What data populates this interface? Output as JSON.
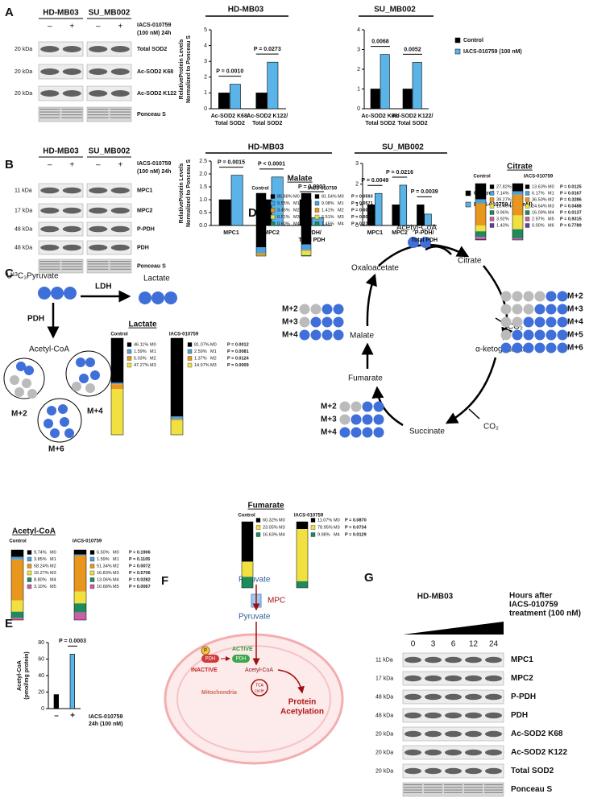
{
  "panel_labels": [
    "A",
    "B",
    "C",
    "D",
    "E",
    "F",
    "G"
  ],
  "blots": {
    "A": {
      "groups": [
        "HD-MB03",
        "SU_MB002"
      ],
      "lanes": [
        "–",
        "+"
      ],
      "treatment": [
        "IACS-010759",
        "(100 nM) 24h"
      ],
      "rows": [
        {
          "label": "Total SOD2",
          "kda": "20 kDa"
        },
        {
          "label": "Ac-SOD2 K68",
          "kda": "20 kDa"
        },
        {
          "label": "Ac-SOD2 K122",
          "kda": "20 kDa"
        },
        {
          "label": "Ponceau S"
        }
      ]
    },
    "B": {
      "groups": [
        "HD-MB03",
        "SU_MB002"
      ],
      "lanes": [
        "–",
        "+"
      ],
      "treatment": [
        "IACS-010759",
        "(100 nM) 24h"
      ],
      "rows": [
        {
          "label": "MPC1",
          "kda": "11 kDa"
        },
        {
          "label": "MPC2",
          "kda": "17 kDa"
        },
        {
          "label": "P-PDH",
          "kda": "48 kDa"
        },
        {
          "label": "PDH",
          "kda": "48 kDa"
        },
        {
          "label": "Ponceau S"
        }
      ]
    },
    "G": {
      "title": "HD-MB03",
      "hours": [
        "0",
        "3",
        "6",
        "12",
        "24"
      ],
      "treatment": [
        "Hours after",
        "IACS-010759",
        "treatment (100 nM)"
      ],
      "rows": [
        {
          "label": "MPC1",
          "kda": "11 kDa"
        },
        {
          "label": "MPC2",
          "kda": "17 kDa"
        },
        {
          "label": "P-PDH",
          "kda": "48 kDa"
        },
        {
          "label": "PDH",
          "kda": "48 kDa"
        },
        {
          "label": "Ac-SOD2 K68",
          "kda": "20 kDa"
        },
        {
          "label": "Ac-SOD2 K122",
          "kda": "20 kDa"
        },
        {
          "label": "Total SOD2",
          "kda": "20 kDa"
        },
        {
          "label": "Ponceau S"
        }
      ]
    }
  },
  "chart_data": [
    {
      "type": "bar",
      "title": "HD-MB03",
      "ylabel": [
        "RelativeProtein Levels",
        "Normalized to Ponceau S"
      ],
      "categories": [
        [
          "Ac-SOD2 K68/",
          "Total SOD2"
        ],
        [
          "Ac-SOD2 K122/",
          "Total SOD2"
        ]
      ],
      "series": [
        {
          "color": "#000000",
          "values": [
            1,
            1
          ]
        },
        {
          "color": "#5ab4e8",
          "values": [
            1.55,
            2.95
          ]
        }
      ],
      "annotations": [
        "P = 0.0010",
        "P = 0.0273"
      ],
      "ylim": [
        0,
        5
      ],
      "yticks": [
        0,
        1,
        2,
        3,
        4,
        5
      ]
    },
    {
      "type": "bar",
      "title": "SU_MB002",
      "categories": [
        [
          "Ac-SOD2 K68/",
          "Total SOD2"
        ],
        [
          "Ac-SOD2 K122/",
          "Total SOD2"
        ]
      ],
      "series": [
        {
          "name": "Control",
          "color": "#000000",
          "values": [
            1,
            1
          ]
        },
        {
          "name": "IACS-010759 (100 nM)",
          "color": "#5ab4e8",
          "values": [
            2.75,
            2.35
          ]
        }
      ],
      "annotations": [
        "0.0068",
        "0.0052"
      ],
      "ylim": [
        0,
        4
      ],
      "yticks": [
        0,
        1,
        2,
        3,
        4
      ],
      "legend": "right"
    },
    {
      "type": "bar",
      "title": "HD-MB03",
      "ylabel": [
        "RelativeProtein Levels",
        "Normalized to Ponceau S"
      ],
      "categories": [
        [
          "MPC1"
        ],
        [
          "MPC2"
        ],
        [
          "P-PDH/",
          "Total PDH"
        ]
      ],
      "series": [
        {
          "color": "#000000",
          "values": [
            1,
            1,
            1
          ]
        },
        {
          "color": "#5ab4e8",
          "values": [
            1.95,
            1.88,
            0.3
          ]
        }
      ],
      "annotations": [
        "P = 0.0015",
        "P < 0.0001",
        "P = 0.0003"
      ],
      "ylim": [
        0,
        2.5
      ],
      "yticks": [
        {
          "value": 0,
          "label": "0.0"
        },
        {
          "value": 0.5,
          "label": "0.5"
        },
        {
          "value": 1,
          "label": "1.0"
        },
        {
          "value": 1.5,
          "label": "1.5"
        },
        {
          "value": 2,
          "label": "2.0"
        },
        {
          "value": 2.5,
          "label": "2.5"
        }
      ]
    },
    {
      "type": "bar",
      "title": "SU_MB002",
      "categories": [
        [
          "MPC1"
        ],
        [
          "MPC2"
        ],
        [
          "P-PDH/",
          "Total PDH"
        ]
      ],
      "series": [
        {
          "name": "Control",
          "color": "#000000",
          "values": [
            1,
            1,
            1
          ]
        },
        {
          "name": "IACS-010759 (100 nM)",
          "color": "#5ab4e8",
          "values": [
            1.55,
            1.95,
            0.55
          ]
        }
      ],
      "annotations": [
        "P = 0.0049",
        "P = 0.0216",
        "P = 0.0039"
      ],
      "ylim": [
        0,
        3
      ],
      "yticks": [
        0,
        1,
        2,
        3
      ],
      "legend": "right"
    },
    {
      "type": "bar",
      "ylabel": [
        "Acetyl-CoA",
        "(pmol/mg protein)"
      ],
      "categories": [
        [
          "–"
        ],
        [
          "+"
        ]
      ],
      "colors": [
        "#000000",
        "#5ab4e8"
      ],
      "series": [
        {
          "values": [
            17,
            66
          ]
        }
      ],
      "annotations": [
        null,
        "P = 0.0003"
      ],
      "xlabel": [
        "IACS-010759",
        "24h (100 nM)"
      ],
      "ylim": [
        0,
        80
      ],
      "yticks": [
        0,
        20,
        40,
        60,
        80
      ]
    },
    {
      "type": "stacked_bar",
      "title": "Lactate",
      "categories": [
        "Control",
        "IACS-010759"
      ],
      "series": [
        {
          "name": "M0",
          "color": "#000000",
          "values": [
            46.11,
            81.07
          ],
          "value_labels": [
            "46.11%",
            "81.07%"
          ]
        },
        {
          "name": "M1",
          "color": "#4aa3df",
          "values": [
            1.59,
            2.59
          ],
          "value_labels": [
            "1.59%",
            "2.59%"
          ]
        },
        {
          "name": "M2",
          "color": "#e8961e",
          "values": [
            5.03,
            1.37
          ],
          "value_labels": [
            "5.03%",
            "1.37%"
          ]
        },
        {
          "name": "M3",
          "color": "#f0e040",
          "values": [
            47.27,
            14.97
          ],
          "value_labels": [
            "47.27%",
            "14.97%"
          ]
        }
      ],
      "p_values": [
        "P = 0.0012",
        "P = 0.0081",
        "P = 0.0124",
        "P = 0.0009"
      ]
    },
    {
      "type": "stacked_bar",
      "title": "Acetyl-CoA",
      "categories": [
        "Control",
        "IACS-010759"
      ],
      "series": [
        {
          "name": "M0",
          "color": "#000000",
          "values": [
            9.74,
            6.5
          ],
          "value_labels": [
            "9.74%",
            "6.50%"
          ]
        },
        {
          "name": "M1",
          "color": "#4aa3df",
          "values": [
            3.85,
            1.59
          ],
          "value_labels": [
            "3.85%",
            "1.59%"
          ]
        },
        {
          "name": "M2",
          "color": "#e8961e",
          "values": [
            58.24,
            51.34
          ],
          "value_labels": [
            "58.24%",
            "51.34%"
          ]
        },
        {
          "name": "M3",
          "color": "#f0e040",
          "values": [
            16.27,
            16.83
          ],
          "value_labels": [
            "16.27%",
            "16.83%"
          ]
        },
        {
          "name": "M4",
          "color": "#1f8a5b",
          "values": [
            8.8,
            13.06
          ],
          "value_labels": [
            "8.80%",
            "13.06%"
          ]
        },
        {
          "name": "M5",
          "color": "#c95fa8",
          "values": [
            3.1,
            10.68
          ],
          "value_labels": [
            "3.10%",
            "10.68%"
          ]
        }
      ],
      "p_values": [
        "P = 0.1906",
        "P = 0.1105",
        "P = 0.0072",
        "P = 0.5706",
        "P = 0.0282",
        "P = 0.0067"
      ]
    },
    {
      "type": "stacked_bar",
      "title": "Malate",
      "categories": [
        "Control",
        "IACS-010759"
      ],
      "series": [
        {
          "name": "M0",
          "color": "#000000",
          "values": [
            85.88,
            81.54
          ],
          "value_labels": [
            "85.88%",
            "81.54%"
          ]
        },
        {
          "name": "M1",
          "color": "#4aa3df",
          "values": [
            9.55,
            9.08
          ],
          "value_labels": [
            "9.55%",
            "9.08%"
          ]
        },
        {
          "name": "M2",
          "color": "#e8961e",
          "values": [
            3.45,
            1.41
          ],
          "value_labels": [
            "3.45%",
            "1.41%"
          ]
        },
        {
          "name": "M3",
          "color": "#f0e040",
          "values": [
            0.51,
            6.51
          ],
          "value_labels": [
            "0.51%",
            "6.51%"
          ]
        },
        {
          "name": "M4",
          "color": "#1f8a5b",
          "values": [
            0.6,
            1.45
          ],
          "value_labels": [
            "0.60%",
            "1.45%"
          ]
        }
      ],
      "p_values": [
        "P = 0.0593",
        "P = 0.0571",
        "P = 0.0018",
        "P = 0.0041",
        "P = 0.2773"
      ]
    },
    {
      "type": "stacked_bar",
      "title": "Citrate",
      "categories": [
        "Control",
        "IACS-010759"
      ],
      "series": [
        {
          "name": "M0",
          "color": "#000000",
          "values": [
            27.82,
            13.63
          ],
          "value_labels": [
            "27.82%",
            "13.63%"
          ]
        },
        {
          "name": "M1",
          "color": "#4aa3df",
          "values": [
            7.14,
            6.17
          ],
          "value_labels": [
            "7.14%",
            "6.17%"
          ]
        },
        {
          "name": "M2",
          "color": "#e8961e",
          "values": [
            39.27,
            36.5
          ],
          "value_labels": [
            "39.27%",
            "36.50%"
          ]
        },
        {
          "name": "M3",
          "color": "#f0e040",
          "values": [
            10.46,
            24.64
          ],
          "value_labels": [
            "10.46%",
            "24.64%"
          ]
        },
        {
          "name": "M4",
          "color": "#1f8a5b",
          "values": [
            9.96,
            16.09
          ],
          "value_labels": [
            "9.96%",
            "16.09%"
          ]
        },
        {
          "name": "M5",
          "color": "#c95fa8",
          "values": [
            3.92,
            2.97
          ],
          "value_labels": [
            "3.92%",
            "2.97%"
          ]
        },
        {
          "name": "M6",
          "color": "#6a3d9a",
          "values": [
            1.43,
            0
          ],
          "value_labels": [
            "1.43%",
            "0.00%"
          ]
        }
      ],
      "p_values": [
        "P = 0.0125",
        "P = 0.0167",
        "P = 0.3286",
        "P = 0.0488",
        "P = 0.0137",
        "P = 0.9315",
        "P = 0.7789"
      ]
    },
    {
      "type": "stacked_bar",
      "title": "Fumarate",
      "categories": [
        "Control",
        "IACS-010759"
      ],
      "series": [
        {
          "name": "M0",
          "color": "#000000",
          "values": [
            60.32,
            11.07
          ],
          "value_labels": [
            "60.32%",
            "11.07%"
          ]
        },
        {
          "name": "M3",
          "color": "#f0e040",
          "values": [
            23.05,
            78.95
          ],
          "value_labels": [
            "23.05%",
            "78.95%"
          ]
        },
        {
          "name": "M4",
          "color": "#1f8a5b",
          "values": [
            16.63,
            9.98
          ],
          "value_labels": [
            "16.63%",
            "9.98%"
          ]
        }
      ],
      "p_values": [
        "P = 0.0870",
        "P = 0.0734",
        "P = 0.0129"
      ]
    }
  ],
  "diagram_C": {
    "substrate": "U¹³C₃Pyruvate",
    "ldh": "LDH",
    "lactate": "Lactate",
    "pdh": "PDH",
    "acetyl_coa": "Acetyl-CoA",
    "isotopologues": [
      "M+2",
      "M+4",
      "M+6"
    ]
  },
  "diagram_D": {
    "acetyl_coa": "Acetyl-CoA",
    "citrate": "Citrate",
    "oxaloacetate": "Oxaloacetate",
    "malate": "Malate",
    "fumarate": "Fumarate",
    "succinate": "Succinate",
    "akg": "α-ketoglutarate",
    "co2": "CO₂",
    "citrate_labels": [
      "M+2",
      "M+3",
      "M+4",
      "M+5",
      "M+6"
    ],
    "malate_labels": [
      "M+2",
      "M+3",
      "M+4"
    ],
    "fumarate_labels": [
      "M+2",
      "M+3",
      "M+4"
    ]
  },
  "diagram_F": {
    "pyruvate_out": "Pyruvate",
    "mpc": "MPC",
    "pyruvate_in": "Pyruvate",
    "phospho": "P",
    "inactive": "INACTIVE",
    "active": "ACTIVE",
    "pdh": "PDH",
    "acetyl_coa": "Acetyl-CoA",
    "tca": [
      "TCA",
      "cycle"
    ],
    "mitochondria": "Mitochondria",
    "outcome": [
      "Protein",
      "Acetylation"
    ]
  }
}
